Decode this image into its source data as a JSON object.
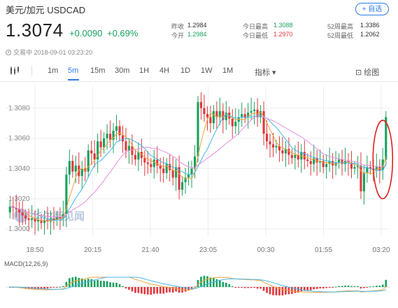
{
  "header": {
    "title": "美元/加元  USDCAD",
    "fav_label": "+ 自选"
  },
  "quote": {
    "price": "1.3074",
    "change": "+0.0090",
    "change_pct": "+0.69%",
    "status": "交易中  2018-09-01 03:23:20"
  },
  "stats": [
    {
      "label": "昨收",
      "value": "1.2984",
      "color": "#333333"
    },
    {
      "label": "今开",
      "value": "1.2984",
      "color": "#19a15f"
    },
    {
      "label": "今日最高",
      "value": "1.3088",
      "color": "#19a15f"
    },
    {
      "label": "今日最低",
      "value": "1.2970",
      "color": "#e0393e"
    },
    {
      "label": "52周最高",
      "value": "1.3386",
      "color": "#333333"
    },
    {
      "label": "52周最低",
      "value": "1.2062",
      "color": "#333333"
    }
  ],
  "toolbar": {
    "intervals": [
      "1m",
      "5m",
      "15m",
      "30m",
      "1H",
      "4H",
      "1D",
      "1W",
      "1M"
    ],
    "active_interval": "5m",
    "indicator_label": "指标",
    "draw_label": "绘图"
  },
  "watermark": "华尔街见闻",
  "macd_label": "MACD(12,26,9)",
  "colors": {
    "up": "#19a15f",
    "down": "#e0393e",
    "ma1": "#f2a33a",
    "ma2": "#45b7e8",
    "ma3": "#e78ee0",
    "highlight": "#e02020"
  },
  "chart_data": {
    "type": "candlestick",
    "ylim": [
      1.2995,
      1.3095
    ],
    "yticks": [
      "1.3080",
      "1.3060",
      "1.3040",
      "1.3020",
      "1.3000"
    ],
    "xticks": [
      "18:50",
      "20:15",
      "21:40",
      "23:05",
      "00:30",
      "01:55",
      "03:20"
    ],
    "close": [
      1.3015,
      1.3014,
      1.3013,
      1.3011,
      1.3009,
      1.3007,
      1.3006,
      1.3007,
      1.3005,
      1.3006,
      1.3004,
      1.3006,
      1.3005,
      1.3007,
      1.3006,
      1.3008,
      1.3007,
      1.301,
      1.3036,
      1.3045,
      1.3038,
      1.3042,
      1.3035,
      1.304,
      1.3038,
      1.3052,
      1.305,
      1.3046,
      1.3058,
      1.3054,
      1.306,
      1.3063,
      1.3059,
      1.3065,
      1.3068,
      1.3062,
      1.3058,
      1.3052,
      1.3055,
      1.3049,
      1.3046,
      1.3051,
      1.3047,
      1.3044,
      1.3043,
      1.3041,
      1.3046,
      1.3042,
      1.304,
      1.3037,
      1.3043,
      1.3039,
      1.3034,
      1.3041,
      1.3026,
      1.3031,
      1.3034,
      1.3036,
      1.304,
      1.3048,
      1.3084,
      1.308,
      1.3076,
      1.3074,
      1.307,
      1.3078,
      1.3074,
      1.3078,
      1.3072,
      1.3077,
      1.3073,
      1.3068,
      1.3071,
      1.3074,
      1.3076,
      1.3074,
      1.3077,
      1.3078,
      1.3079,
      1.3074,
      1.3078,
      1.3063,
      1.3058,
      1.3056,
      1.3054,
      1.3055,
      1.3052,
      1.305,
      1.3053,
      1.3049,
      1.3047,
      1.3049,
      1.3046,
      1.3051,
      1.3046,
      1.3045,
      1.3043,
      1.3047,
      1.3044,
      1.3045,
      1.3041,
      1.3043,
      1.3045,
      1.3042,
      1.3044,
      1.3046,
      1.3043,
      1.3045,
      1.3044,
      1.304,
      1.3041,
      1.3042,
      1.3025,
      1.3037,
      1.3041,
      1.304,
      1.3039,
      1.3041,
      1.3039,
      1.3046,
      1.3074
    ],
    "ma_periods": [
      5,
      10,
      20
    ],
    "ma_names": [
      "MA5",
      "MA10",
      "MA20"
    ],
    "macd_ylim": [
      -1,
      1
    ],
    "highlight": "last-candles"
  }
}
